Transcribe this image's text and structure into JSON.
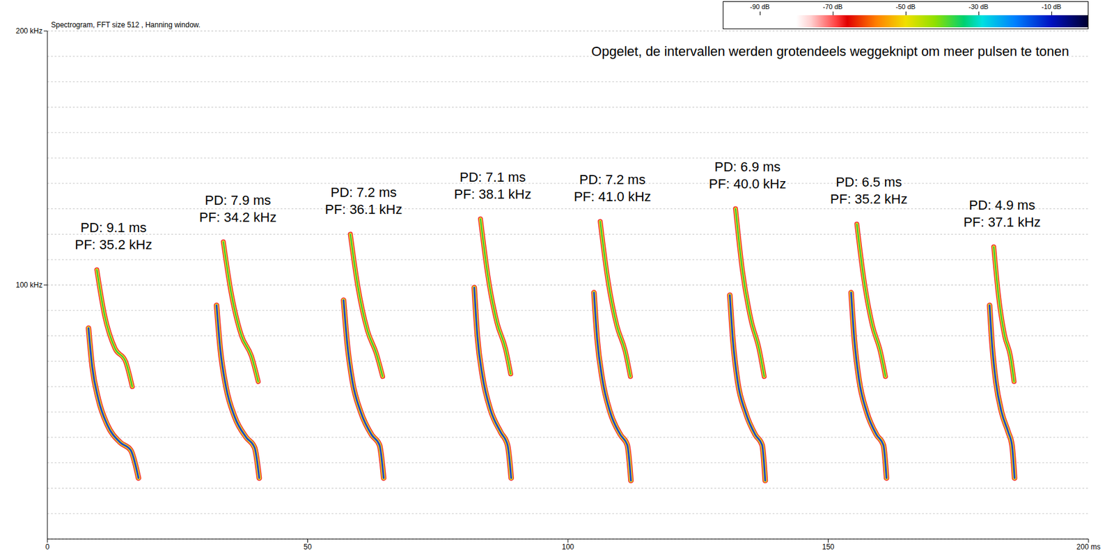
{
  "chart_data": {
    "type": "spectrogram",
    "title": "Spectrogram, FFT size 512 , Hanning window.",
    "annotation": "Opgelet, de intervallen werden grotendeels weggeknipt om meer pulsen te tonen",
    "xlim": [
      0,
      200
    ],
    "xticks": [
      0,
      50,
      100,
      150,
      {
        "value": 200,
        "label": "200 ms"
      }
    ],
    "ylim": [
      0,
      200
    ],
    "yticks": [
      {
        "value": 100,
        "label": "100 kHz"
      },
      {
        "value": 200,
        "label": "200 kHz"
      }
    ],
    "minor_yticks": [
      10,
      20,
      30,
      40,
      50,
      60,
      70,
      80,
      90,
      110,
      120,
      130,
      140,
      150,
      160,
      170,
      180,
      190
    ],
    "grid": true,
    "color": "#1e46c8",
    "color_bar": {
      "range": [
        -100,
        0
      ],
      "ticks": [
        {
          "value": -90,
          "label": "-90 dB"
        },
        {
          "value": -70,
          "label": "-70 dB"
        },
        {
          "value": -50,
          "label": "-50 dB"
        },
        {
          "value": -30,
          "label": "-30 dB"
        },
        {
          "value": -10,
          "label": "-10 dB"
        }
      ]
    },
    "pulses": [
      {
        "labels": [
          "PD: 9.1 ms",
          "PF: 35.2 kHz"
        ],
        "fundamental": [
          [
            7.9,
            83
          ],
          [
            8.6,
            68
          ],
          [
            9.8,
            55
          ],
          [
            11.5,
            45
          ],
          [
            14,
            38
          ],
          [
            16,
            35
          ],
          [
            17.5,
            24
          ]
        ],
        "harmonic": [
          [
            9.5,
            106
          ],
          [
            11,
            88
          ],
          [
            13,
            75
          ],
          [
            15,
            70
          ],
          [
            16.3,
            60
          ]
        ]
      },
      {
        "labels": [
          "PD: 7.9 ms",
          "PF: 34.2 kHz"
        ],
        "fundamental": [
          [
            32.5,
            92
          ],
          [
            33.2,
            75
          ],
          [
            34.3,
            60
          ],
          [
            36,
            48
          ],
          [
            38.2,
            40
          ],
          [
            39.8,
            36
          ],
          [
            40.7,
            24
          ]
        ],
        "harmonic": [
          [
            33.8,
            117
          ],
          [
            35.3,
            97
          ],
          [
            37.3,
            80
          ],
          [
            39.2,
            72
          ],
          [
            40.5,
            62
          ]
        ]
      },
      {
        "labels": [
          "PD: 7.2 ms",
          "PF: 36.1 kHz"
        ],
        "fundamental": [
          [
            56.9,
            94
          ],
          [
            57.6,
            77
          ],
          [
            58.6,
            62
          ],
          [
            60.2,
            50
          ],
          [
            62.3,
            41
          ],
          [
            63.8,
            37
          ],
          [
            64.6,
            24
          ]
        ],
        "harmonic": [
          [
            58.2,
            120
          ],
          [
            59.6,
            100
          ],
          [
            61.5,
            82
          ],
          [
            63.2,
            73
          ],
          [
            64.4,
            64
          ]
        ]
      },
      {
        "labels": [
          "PD: 7.1 ms",
          "PF: 38.1 kHz"
        ],
        "fundamental": [
          [
            82,
            99
          ],
          [
            82.6,
            80
          ],
          [
            83.6,
            64
          ],
          [
            85.1,
            51
          ],
          [
            87.1,
            42
          ],
          [
            88.4,
            37
          ],
          [
            89.1,
            24
          ]
        ],
        "harmonic": [
          [
            83.2,
            126
          ],
          [
            84.6,
            104
          ],
          [
            86.4,
            85
          ],
          [
            88,
            75
          ],
          [
            89,
            65
          ]
        ]
      },
      {
        "labels": [
          "PD: 7.2 ms",
          "PF: 41.0 kHz"
        ],
        "fundamental": [
          [
            105,
            97
          ],
          [
            105.6,
            79
          ],
          [
            106.6,
            63
          ],
          [
            108.1,
            50
          ],
          [
            110.1,
            41
          ],
          [
            111.4,
            37
          ],
          [
            112.1,
            23
          ]
        ],
        "harmonic": [
          [
            106.2,
            125
          ],
          [
            107.6,
            103
          ],
          [
            109.4,
            84
          ],
          [
            111,
            74
          ],
          [
            112,
            64
          ]
        ]
      },
      {
        "labels": [
          "PD: 6.9 ms",
          "PF: 40.0 kHz"
        ],
        "fundamental": [
          [
            131.1,
            96
          ],
          [
            131.7,
            78
          ],
          [
            132.6,
            62
          ],
          [
            134.1,
            50
          ],
          [
            136,
            41
          ],
          [
            137.3,
            37
          ],
          [
            137.9,
            23
          ]
        ],
        "harmonic": [
          [
            132.2,
            130
          ],
          [
            133.5,
            106
          ],
          [
            135.2,
            86
          ],
          [
            136.7,
            75
          ],
          [
            137.7,
            64
          ]
        ]
      },
      {
        "labels": [
          "PD: 6.5 ms",
          "PF: 35.2 kHz"
        ],
        "fundamental": [
          [
            154.4,
            97
          ],
          [
            155,
            79
          ],
          [
            155.9,
            63
          ],
          [
            157.4,
            50
          ],
          [
            159.3,
            41
          ],
          [
            160.6,
            37
          ],
          [
            161.2,
            24
          ]
        ],
        "harmonic": [
          [
            155.5,
            124
          ],
          [
            156.8,
            103
          ],
          [
            158.5,
            84
          ],
          [
            160,
            74
          ],
          [
            161,
            64
          ]
        ]
      },
      {
        "labels": [
          "PD: 4.9 ms",
          "PF: 37.1 kHz"
        ],
        "fundamental": [
          [
            181,
            92
          ],
          [
            181.5,
            76
          ],
          [
            182.2,
            62
          ],
          [
            183.3,
            50
          ],
          [
            184.6,
            42
          ],
          [
            185.3,
            37
          ],
          [
            185.8,
            24
          ]
        ],
        "harmonic": [
          [
            181.8,
            115
          ],
          [
            182.7,
            96
          ],
          [
            183.9,
            80
          ],
          [
            185,
            72
          ],
          [
            185.7,
            62
          ]
        ]
      }
    ]
  }
}
